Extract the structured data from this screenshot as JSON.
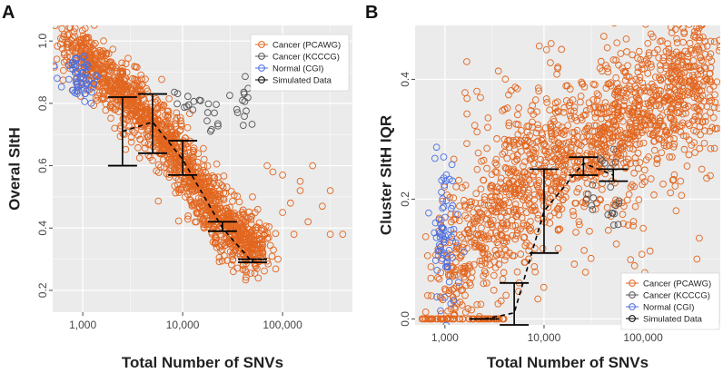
{
  "figure": {
    "panel_a_letter": "A",
    "panel_b_letter": "B"
  },
  "colors": {
    "pcawg": "#E2661F",
    "kcccg": "#555555",
    "normal": "#4C6FE0",
    "simulated": "#000000",
    "panel_bg": "#EBEBEB",
    "grid": "#FFFFFF"
  },
  "chart_data": [
    {
      "id": "A",
      "type": "scatter",
      "title": "",
      "xlabel": "Total Number of SNVs",
      "ylabel": "Overal SItH",
      "x_scale": "log10",
      "xlim": [
        500,
        500000
      ],
      "ylim": [
        0.13,
        1.05
      ],
      "xticks": [
        {
          "value": 1000,
          "label": "1,000"
        },
        {
          "value": 10000,
          "label": "10,000"
        },
        {
          "value": 100000,
          "label": "100,000"
        }
      ],
      "yticks": [
        {
          "value": 0.2,
          "label": "0.2"
        },
        {
          "value": 0.4,
          "label": "0.4"
        },
        {
          "value": 0.6,
          "label": "0.6"
        },
        {
          "value": 0.8,
          "label": "0.8"
        },
        {
          "value": 1.0,
          "label": "1.0"
        }
      ],
      "legend_position": "top-right",
      "legend": [
        {
          "label": "Cancer (PCAWG)",
          "series": "pcawg"
        },
        {
          "label": "Cancer (KCCCG)",
          "series": "kcccg"
        },
        {
          "label": "Normal (CGI)",
          "series": "normal"
        },
        {
          "label": "Simulated Data",
          "series": "simulated"
        }
      ],
      "series": {
        "pcawg": {
          "n": 1450,
          "points_sample": [
            [
              600,
              0.99
            ],
            [
              800,
              0.97
            ],
            [
              1200,
              0.92
            ],
            [
              2000,
              0.86
            ],
            [
              3000,
              0.8
            ],
            [
              5000,
              0.74
            ],
            [
              8000,
              0.65
            ],
            [
              12000,
              0.55
            ],
            [
              20000,
              0.45
            ],
            [
              30000,
              0.38
            ],
            [
              50000,
              0.33
            ],
            [
              100000,
              0.45
            ],
            [
              150000,
              0.52
            ],
            [
              300000,
              0.38
            ],
            [
              80000,
              0.58
            ]
          ],
          "trend": [
            [
              650,
              0.985
            ],
            [
              1000,
              0.96
            ],
            [
              2000,
              0.87
            ],
            [
              4000,
              0.77
            ],
            [
              8000,
              0.66
            ],
            [
              15000,
              0.51
            ],
            [
              30000,
              0.39
            ],
            [
              60000,
              0.33
            ]
          ],
          "spread": 0.045,
          "sparse_tail": [
            [
              50000,
              0.5
            ],
            [
              70000,
              0.6
            ],
            [
              100000,
              0.57
            ],
            [
              120000,
              0.48
            ],
            [
              150000,
              0.55
            ],
            [
              180000,
              0.42
            ],
            [
              250000,
              0.47
            ],
            [
              400000,
              0.38
            ],
            [
              90000,
              0.3
            ],
            [
              200000,
              0.6
            ],
            [
              130000,
              0.38
            ],
            [
              300000,
              0.52
            ]
          ]
        },
        "kcccg": {
          "clusters": [
            {
              "x": 10000,
              "y": 0.82,
              "n": 10,
              "sx": 0.12,
              "sy": 0.02
            },
            {
              "x": 20000,
              "y": 0.78,
              "n": 10,
              "sx": 0.06,
              "sy": 0.04
            },
            {
              "x": 40000,
              "y": 0.8,
              "n": 14,
              "sx": 0.05,
              "sy": 0.035
            }
          ]
        },
        "normal": {
          "cluster": {
            "x": 950,
            "y": 0.88,
            "n": 60,
            "sx": 0.1,
            "sy": 0.04
          }
        },
        "simulated": {
          "errorbars": [
            {
              "x": 2500,
              "ymin": 0.6,
              "ymax": 0.82
            },
            {
              "x": 5000,
              "ymin": 0.64,
              "ymax": 0.83
            },
            {
              "x": 10000,
              "ymin": 0.57,
              "ymax": 0.68
            },
            {
              "x": 25000,
              "ymin": 0.39,
              "ymax": 0.42
            },
            {
              "x": 50000,
              "ymin": 0.29,
              "ymax": 0.3
            }
          ],
          "mean_line": [
            [
              2500,
              0.71
            ],
            [
              5000,
              0.74
            ],
            [
              10000,
              0.62
            ],
            [
              25000,
              0.4
            ],
            [
              50000,
              0.29
            ]
          ]
        }
      }
    },
    {
      "id": "B",
      "type": "scatter",
      "title": "",
      "xlabel": "Total Number of SNVs",
      "ylabel": "Cluster SItH IQR",
      "x_scale": "log10",
      "xlim": [
        500,
        600000
      ],
      "ylim": [
        -0.01,
        0.49
      ],
      "xticks": [
        {
          "value": 1000,
          "label": "1,000"
        },
        {
          "value": 10000,
          "label": "10,000"
        },
        {
          "value": 100000,
          "label": "100,000"
        }
      ],
      "yticks": [
        {
          "value": 0.0,
          "label": "0.0"
        },
        {
          "value": 0.2,
          "label": "0.2"
        },
        {
          "value": 0.4,
          "label": "0.4"
        }
      ],
      "legend_position": "bottom-right",
      "legend": [
        {
          "label": "Cancer (PCAWG)",
          "series": "pcawg"
        },
        {
          "label": "Cancer (KCCCG)",
          "series": "kcccg"
        },
        {
          "label": "Normal (CGI)",
          "series": "normal"
        },
        {
          "label": "Simulated Data",
          "series": "simulated"
        }
      ],
      "series": {
        "pcawg": {
          "n": 1450,
          "points_sample": [
            [
              600,
              0.0
            ],
            [
              1000,
              0.05
            ],
            [
              2000,
              0.12
            ],
            [
              3000,
              0.18
            ],
            [
              5000,
              0.22
            ],
            [
              8000,
              0.27
            ],
            [
              12000,
              0.3
            ],
            [
              20000,
              0.3
            ],
            [
              50000,
              0.33
            ],
            [
              150000,
              0.4
            ],
            [
              300000,
              0.42
            ],
            [
              30000,
              0.25
            ],
            [
              7000,
              0.1
            ],
            [
              4000,
              0.35
            ],
            [
              15000,
              0.45
            ]
          ],
          "zero_row": {
            "xmin": 560,
            "xmax": 4000,
            "n": 60
          },
          "trend": [
            [
              800,
              0.06
            ],
            [
              1500,
              0.1
            ],
            [
              3000,
              0.17
            ],
            [
              6000,
              0.23
            ],
            [
              12000,
              0.27
            ],
            [
              25000,
              0.29
            ],
            [
              60000,
              0.33
            ],
            [
              200000,
              0.38
            ],
            [
              500000,
              0.41
            ]
          ],
          "spread": 0.06
        },
        "kcccg": {
          "clusters": [
            {
              "x": 28000,
              "y": 0.21,
              "n": 6,
              "sx": 0.05,
              "sy": 0.015
            },
            {
              "x": 50000,
              "y": 0.18,
              "n": 10,
              "sx": 0.05,
              "sy": 0.02
            },
            {
              "x": 40000,
              "y": 0.26,
              "n": 6,
              "sx": 0.06,
              "sy": 0.015
            }
          ]
        },
        "normal": {
          "cluster": {
            "x": 1000,
            "y": 0.14,
            "n": 70,
            "sx": 0.07,
            "sy": 0.06
          }
        },
        "simulated": {
          "errorbars": [
            {
              "x": 2500,
              "ymin": 0.0,
              "ymax": 0.0
            },
            {
              "x": 5000,
              "ymin": -0.01,
              "ymax": 0.06
            },
            {
              "x": 10000,
              "ymin": 0.11,
              "ymax": 0.25
            },
            {
              "x": 25000,
              "ymin": 0.24,
              "ymax": 0.27
            },
            {
              "x": 50000,
              "ymin": 0.23,
              "ymax": 0.25
            }
          ],
          "mean_line": [
            [
              2500,
              0.0
            ],
            [
              5000,
              0.01
            ],
            [
              10000,
              0.18
            ],
            [
              25000,
              0.26
            ],
            [
              50000,
              0.24
            ]
          ]
        }
      }
    }
  ]
}
